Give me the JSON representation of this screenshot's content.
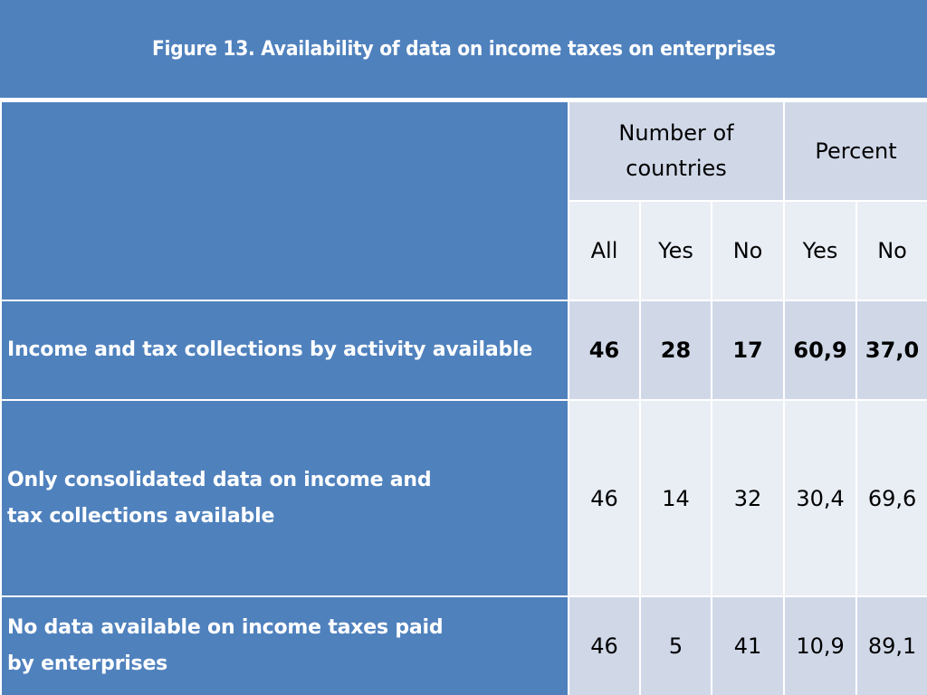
{
  "title": "Figure 13. Availability of data on income taxes on enterprises",
  "table": {
    "group_headers": {
      "count": "Number of countries",
      "percent": "Percent"
    },
    "sub_headers": [
      "All",
      "Yes",
      "No",
      "Yes",
      "No"
    ],
    "rows": [
      {
        "label": "Income and tax collections by activity available",
        "values": [
          "46",
          "28",
          "17",
          "60,9",
          "37,0"
        ]
      },
      {
        "label": "Only consolidated data on income and tax collections available",
        "values": [
          "46",
          "14",
          "32",
          "30,4",
          "69,6"
        ]
      },
      {
        "label": "No data available on income taxes paid by enterprises",
        "values": [
          "46",
          "5",
          "41",
          "10,9",
          "89,1"
        ]
      }
    ]
  },
  "colors": {
    "header_blue": "#4f81bd",
    "cell_dark": "#d0d8e8",
    "cell_light": "#e9edf4"
  }
}
